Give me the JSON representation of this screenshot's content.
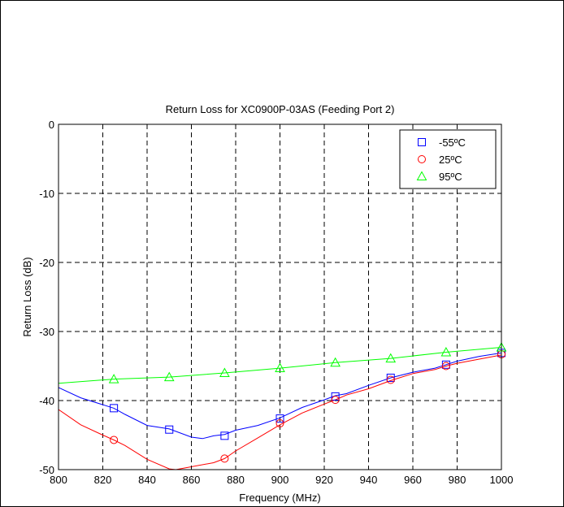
{
  "chart_data": {
    "type": "line",
    "title": "Return Loss for XC0900P-03AS (Feeding Port 2)",
    "xlabel": "Frequency (MHz)",
    "ylabel": "Return Loss (dB)",
    "xlim": [
      800,
      1000
    ],
    "ylim": [
      -50,
      0
    ],
    "xticks": [
      800,
      820,
      840,
      860,
      880,
      900,
      920,
      940,
      960,
      980,
      1000
    ],
    "yticks": [
      0,
      -10,
      -20,
      -30,
      -40,
      -50
    ],
    "grid": true,
    "grid_style": "dashed",
    "legend_position": "top-right",
    "series": [
      {
        "name": "-55ºC",
        "color": "#0000ff",
        "marker": "square",
        "x": [
          800,
          810,
          820,
          825,
          830,
          840,
          850,
          860,
          865,
          870,
          875,
          880,
          890,
          900,
          910,
          920,
          925,
          930,
          940,
          950,
          960,
          970,
          975,
          980,
          990,
          1000
        ],
        "y": [
          -38.1,
          -39.6,
          -40.6,
          -41.1,
          -42.0,
          -43.6,
          -44.1,
          -45.3,
          -45.5,
          -45.1,
          -44.9,
          -44.3,
          -43.6,
          -42.5,
          -41.0,
          -39.9,
          -39.3,
          -39.0,
          -37.8,
          -36.7,
          -35.9,
          -35.3,
          -34.8,
          -34.3,
          -33.6,
          -33.1
        ]
      },
      {
        "name": "25ºC",
        "color": "#ff0000",
        "marker": "circle",
        "x": [
          800,
          810,
          820,
          825,
          830,
          840,
          850,
          853,
          870,
          875,
          880,
          890,
          900,
          910,
          920,
          925,
          930,
          940,
          950,
          960,
          970,
          975,
          980,
          990,
          1000
        ],
        "y": [
          -41.3,
          -43.5,
          -45.0,
          -45.7,
          -46.5,
          -48.5,
          -49.9,
          -50.0,
          -49.0,
          -48.4,
          -47.3,
          -45.4,
          -43.5,
          -41.8,
          -40.5,
          -39.9,
          -39.2,
          -38.3,
          -37.1,
          -36.1,
          -35.5,
          -35.0,
          -34.6,
          -34.0,
          -33.4
        ]
      },
      {
        "name": "95ºC",
        "color": "#00ff00",
        "marker": "triangle",
        "x": [
          800,
          825,
          850,
          875,
          900,
          925,
          950,
          975,
          1000
        ],
        "y": [
          -37.5,
          -36.9,
          -36.6,
          -36.0,
          -35.3,
          -34.5,
          -33.9,
          -33.0,
          -32.3
        ]
      }
    ],
    "marker_x": [
      825,
      850,
      875,
      900,
      925,
      950,
      975,
      1000
    ],
    "marker_y": {
      "-55ºC": [
        -41.1,
        -44.2,
        -45.1,
        -42.6,
        -39.4,
        -36.7,
        -34.8,
        -33.1
      ],
      "25ºC": [
        -45.7,
        null,
        -48.4,
        -43.3,
        -39.9,
        -37.0,
        -35.0,
        -33.3
      ],
      "95ºC": [
        -36.9,
        -36.6,
        -36.0,
        -35.3,
        -34.5,
        -33.9,
        -33.0,
        -32.3
      ]
    }
  }
}
